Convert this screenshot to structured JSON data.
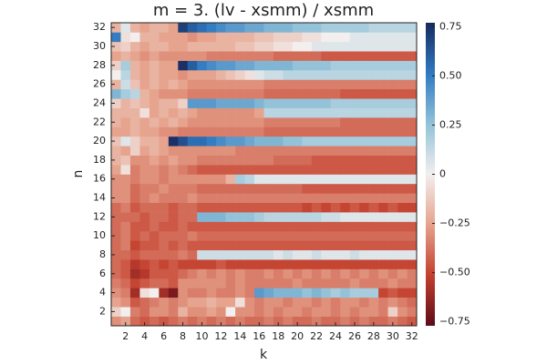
{
  "chart_data": {
    "type": "heatmap",
    "title": "m = 3. (lv - xsmm) / xsmm",
    "x_label": "k",
    "y_label": "n",
    "x": [
      1,
      2,
      3,
      4,
      5,
      6,
      7,
      8,
      9,
      10,
      11,
      12,
      13,
      14,
      15,
      16,
      17,
      18,
      19,
      20,
      21,
      22,
      23,
      24,
      25,
      26,
      27,
      28,
      29,
      30,
      31,
      32
    ],
    "y": [
      1,
      2,
      3,
      4,
      5,
      6,
      7,
      8,
      9,
      10,
      11,
      12,
      13,
      14,
      15,
      16,
      17,
      18,
      19,
      20,
      21,
      22,
      23,
      24,
      25,
      26,
      27,
      28,
      29,
      30,
      31,
      32
    ],
    "xlim": [
      0.5,
      32.5
    ],
    "ylim": [
      0.5,
      32.5
    ],
    "xticks": [
      2,
      4,
      6,
      8,
      10,
      12,
      14,
      16,
      18,
      20,
      22,
      24,
      26,
      28,
      30,
      32
    ],
    "yticks": [
      2,
      4,
      6,
      8,
      10,
      12,
      14,
      16,
      18,
      20,
      22,
      24,
      26,
      28,
      30,
      32
    ],
    "clim": [
      -0.77,
      0.77
    ],
    "colormap": [
      "#5e0b1a",
      "#c3402e",
      "#e6a28c",
      "#f2efee",
      "#91c2d8",
      "#2f79c2",
      "#182a5e"
    ],
    "cticks": [
      {
        "value": -0.75,
        "label": "−0.75"
      },
      {
        "value": -0.5,
        "label": "−0.50"
      },
      {
        "value": -0.25,
        "label": "−0.25"
      },
      0,
      0.25,
      {
        "value": 0.5,
        "label": "0.50"
      },
      0.75
    ],
    "z": [
      [
        -0.3,
        -0.25,
        -0.4,
        -0.45,
        -0.4,
        -0.45,
        -0.4,
        -0.35,
        -0.4,
        -0.35,
        -0.4,
        -0.35,
        -0.4,
        -0.35,
        -0.4,
        -0.4,
        -0.35,
        -0.4,
        -0.35,
        -0.4,
        -0.4,
        -0.35,
        -0.4,
        -0.4,
        -0.35,
        -0.4,
        -0.35,
        -0.4,
        -0.4,
        -0.35,
        -0.4,
        -0.45
      ],
      [
        -0.1,
        0,
        -0.35,
        -0.4,
        -0.3,
        -0.3,
        -0.35,
        -0.2,
        -0.3,
        -0.3,
        -0.25,
        -0.3,
        0,
        -0.3,
        -0.3,
        -0.35,
        -0.3,
        -0.35,
        -0.3,
        -0.3,
        -0.35,
        -0.3,
        -0.3,
        -0.35,
        -0.3,
        -0.35,
        -0.3,
        -0.3,
        -0.35,
        -0.1,
        -0.3,
        -0.35
      ],
      [
        -0.25,
        -0.3,
        -0.45,
        -0.4,
        -0.35,
        -0.3,
        -0.35,
        -0.3,
        -0.25,
        -0.25,
        -0.2,
        -0.25,
        -0.25,
        -0.05,
        -0.3,
        -0.35,
        -0.3,
        -0.3,
        -0.35,
        -0.3,
        -0.3,
        -0.35,
        -0.3,
        -0.35,
        -0.3,
        -0.3,
        -0.35,
        -0.3,
        -0.35,
        -0.3,
        -0.35,
        -0.4
      ],
      [
        -0.3,
        -0.35,
        -0.6,
        -0.05,
        0,
        -0.6,
        -0.7,
        -0.3,
        -0.35,
        -0.35,
        -0.3,
        -0.35,
        -0.35,
        -0.3,
        -0.35,
        0.4,
        0.35,
        0.3,
        0.3,
        0.3,
        0.25,
        0.3,
        0.25,
        0.2,
        0.25,
        0.2,
        0.2,
        0.2,
        -0.5,
        -0.45,
        -0.5,
        -0.5
      ],
      [
        -0.35,
        -0.4,
        -0.5,
        -0.45,
        -0.4,
        -0.4,
        -0.45,
        -0.3,
        -0.3,
        -0.3,
        -0.3,
        -0.3,
        -0.35,
        -0.3,
        -0.35,
        -0.35,
        -0.35,
        -0.35,
        -0.35,
        -0.3,
        -0.35,
        -0.35,
        -0.35,
        -0.35,
        -0.35,
        -0.3,
        -0.35,
        -0.35,
        -0.35,
        -0.3,
        -0.35,
        -0.35
      ],
      [
        -0.4,
        -0.45,
        -0.6,
        -0.55,
        -0.45,
        -0.45,
        -0.45,
        -0.4,
        -0.35,
        -0.3,
        -0.35,
        -0.3,
        -0.35,
        -0.3,
        -0.35,
        -0.35,
        -0.3,
        -0.35,
        -0.3,
        -0.35,
        -0.3,
        -0.35,
        -0.3,
        -0.35,
        -0.3,
        -0.35,
        -0.3,
        -0.35,
        -0.3,
        -0.35,
        -0.3,
        -0.35
      ],
      [
        -0.4,
        -0.45,
        -0.55,
        -0.5,
        -0.45,
        -0.5,
        -0.45,
        -0.5,
        -0.5,
        -0.5,
        -0.5,
        -0.45,
        -0.5,
        -0.5,
        -0.5,
        -0.5,
        -0.5,
        -0.5,
        -0.5,
        -0.5,
        -0.5,
        -0.5,
        -0.5,
        -0.5,
        -0.5,
        -0.5,
        -0.5,
        -0.5,
        -0.5,
        -0.5,
        -0.5,
        -0.5
      ],
      [
        -0.4,
        -0.4,
        -0.45,
        -0.4,
        -0.4,
        -0.4,
        -0.4,
        -0.35,
        -0.4,
        0.1,
        0.1,
        0.1,
        0.1,
        0.1,
        0.1,
        0.1,
        0.1,
        0.05,
        0.1,
        0.05,
        0.05,
        0.1,
        0.05,
        0.05,
        0.05,
        0.1,
        0.05,
        0.05,
        0.05,
        0.05,
        0.05,
        0.05
      ],
      [
        -0.4,
        -0.35,
        -0.5,
        -0.45,
        -0.45,
        -0.4,
        -0.45,
        -0.4,
        -0.45,
        -0.45,
        -0.45,
        -0.45,
        -0.45,
        -0.45,
        -0.45,
        -0.45,
        -0.45,
        -0.45,
        -0.45,
        -0.45,
        -0.45,
        -0.45,
        -0.45,
        -0.45,
        -0.45,
        -0.45,
        -0.45,
        -0.45,
        -0.45,
        -0.45,
        -0.45,
        -0.45
      ],
      [
        -0.4,
        -0.35,
        -0.45,
        -0.4,
        -0.45,
        -0.4,
        -0.4,
        -0.4,
        -0.35,
        -0.4,
        -0.4,
        -0.4,
        -0.4,
        -0.4,
        -0.4,
        -0.4,
        -0.4,
        -0.4,
        -0.4,
        -0.4,
        -0.4,
        -0.4,
        -0.4,
        -0.4,
        -0.4,
        -0.4,
        -0.4,
        -0.4,
        -0.4,
        -0.4,
        -0.4,
        -0.4
      ],
      [
        -0.4,
        -0.35,
        -0.45,
        -0.45,
        -0.4,
        -0.45,
        -0.45,
        -0.4,
        -0.45,
        -0.45,
        -0.45,
        -0.45,
        -0.45,
        -0.45,
        -0.45,
        -0.45,
        -0.45,
        -0.45,
        -0.45,
        -0.45,
        -0.45,
        -0.45,
        -0.45,
        -0.45,
        -0.45,
        -0.45,
        -0.45,
        -0.45,
        -0.45,
        -0.45,
        -0.45,
        -0.45
      ],
      [
        -0.4,
        -0.4,
        -0.4,
        -0.45,
        -0.4,
        -0.4,
        -0.45,
        -0.4,
        -0.4,
        0.3,
        0.3,
        0.3,
        0.25,
        0.25,
        0.25,
        0.2,
        0.15,
        0.15,
        0.15,
        0.15,
        0.15,
        0.15,
        0.1,
        0.1,
        0.05,
        0.05,
        0.05,
        0.05,
        0.05,
        0.05,
        0.05,
        0.05
      ],
      [
        -0.4,
        -0.35,
        -0.45,
        -0.4,
        -0.4,
        -0.4,
        -0.45,
        -0.4,
        -0.4,
        -0.45,
        -0.45,
        -0.45,
        -0.45,
        -0.45,
        -0.45,
        -0.45,
        -0.45,
        -0.45,
        -0.45,
        -0.45,
        -0.5,
        -0.45,
        -0.5,
        -0.45,
        -0.5,
        -0.45,
        -0.5,
        -0.45,
        -0.5,
        -0.45,
        -0.5,
        -0.5
      ],
      [
        -0.3,
        -0.3,
        -0.4,
        -0.35,
        -0.3,
        -0.35,
        -0.35,
        -0.35,
        -0.3,
        -0.35,
        -0.35,
        -0.35,
        -0.35,
        -0.35,
        -0.35,
        -0.35,
        -0.35,
        -0.35,
        -0.35,
        -0.35,
        -0.35,
        -0.35,
        -0.35,
        -0.35,
        -0.35,
        -0.35,
        -0.35,
        -0.35,
        -0.35,
        -0.35,
        -0.35,
        -0.35
      ],
      [
        -0.3,
        -0.3,
        -0.4,
        -0.35,
        -0.35,
        -0.3,
        -0.35,
        -0.35,
        -0.35,
        -0.4,
        -0.4,
        -0.4,
        -0.4,
        -0.4,
        -0.4,
        -0.4,
        -0.4,
        -0.4,
        -0.4,
        -0.4,
        -0.45,
        -0.45,
        -0.45,
        -0.45,
        -0.45,
        -0.45,
        -0.45,
        -0.45,
        -0.45,
        -0.45,
        -0.45,
        -0.45
      ],
      [
        -0.3,
        -0.3,
        -0.35,
        -0.3,
        -0.3,
        -0.35,
        -0.3,
        -0.3,
        -0.3,
        -0.3,
        -0.3,
        -0.3,
        -0.2,
        0.2,
        0.15,
        0.05,
        0.05,
        0.05,
        0.05,
        0.05,
        0.05,
        0.05,
        0.05,
        0.05,
        0.05,
        0.05,
        0.05,
        0.05,
        0.05,
        0.05,
        0.05,
        0.05
      ],
      [
        -0.25,
        -0.05,
        -0.35,
        -0.3,
        -0.3,
        -0.35,
        -0.3,
        -0.35,
        -0.4,
        -0.45,
        -0.45,
        -0.45,
        -0.45,
        -0.45,
        -0.45,
        -0.45,
        -0.45,
        -0.45,
        -0.45,
        -0.45,
        -0.45,
        -0.45,
        -0.45,
        -0.45,
        -0.45,
        -0.45,
        -0.45,
        -0.45,
        -0.45,
        -0.45,
        -0.45,
        -0.45
      ],
      [
        -0.2,
        -0.15,
        -0.3,
        -0.3,
        -0.25,
        -0.3,
        -0.25,
        -0.3,
        -0.3,
        -0.35,
        -0.35,
        -0.35,
        -0.35,
        -0.35,
        -0.35,
        -0.35,
        -0.35,
        -0.4,
        -0.4,
        -0.4,
        -0.4,
        -0.45,
        -0.45,
        -0.45,
        -0.45,
        -0.45,
        -0.45,
        -0.45,
        -0.45,
        -0.45,
        -0.45,
        -0.45
      ],
      [
        -0.2,
        -0.25,
        -0.1,
        -0.25,
        -0.2,
        -0.25,
        -0.3,
        -0.3,
        -0.3,
        -0.3,
        -0.3,
        -0.3,
        -0.3,
        -0.35,
        -0.35,
        -0.35,
        -0.35,
        -0.35,
        -0.35,
        -0.35,
        -0.35,
        -0.35,
        -0.35,
        -0.35,
        -0.35,
        -0.35,
        -0.35,
        -0.35,
        -0.35,
        -0.35,
        -0.35,
        -0.35
      ],
      [
        -0.15,
        0.05,
        -0.1,
        -0.2,
        -0.2,
        -0.25,
        0.75,
        0.65,
        0.55,
        0.55,
        0.5,
        0.45,
        0.4,
        0.4,
        0.35,
        0.3,
        0.3,
        0.3,
        0.25,
        0.25,
        0.2,
        0.2,
        0.2,
        0.2,
        0.2,
        0.2,
        0.2,
        0.2,
        0.2,
        0.2,
        0.2,
        0.2
      ],
      [
        -0.25,
        -0.25,
        -0.2,
        -0.25,
        -0.25,
        -0.3,
        -0.3,
        -0.35,
        -0.35,
        -0.35,
        -0.35,
        -0.35,
        -0.35,
        -0.35,
        -0.35,
        -0.35,
        -0.4,
        -0.4,
        -0.4,
        -0.4,
        -0.4,
        -0.4,
        -0.4,
        -0.4,
        -0.4,
        -0.4,
        -0.4,
        -0.4,
        -0.4,
        -0.4,
        -0.4,
        -0.4
      ],
      [
        -0.2,
        -0.25,
        -0.2,
        -0.25,
        -0.2,
        -0.25,
        -0.2,
        -0.25,
        -0.3,
        -0.3,
        -0.3,
        -0.3,
        -0.3,
        -0.3,
        -0.3,
        -0.3,
        -0.35,
        -0.35,
        -0.35,
        -0.35,
        -0.35,
        -0.35,
        -0.35,
        -0.35,
        -0.4,
        -0.4,
        -0.4,
        -0.4,
        -0.4,
        -0.4,
        -0.4,
        -0.4
      ],
      [
        -0.2,
        -0.2,
        -0.2,
        -0.05,
        -0.25,
        -0.2,
        -0.25,
        -0.2,
        -0.25,
        -0.3,
        -0.3,
        -0.3,
        -0.3,
        -0.3,
        -0.3,
        -0.25,
        0.15,
        0.15,
        0.15,
        0.15,
        0.15,
        0.15,
        0.15,
        0.15,
        0.15,
        0.15,
        0.15,
        0.15,
        0.15,
        0.15,
        0.15,
        0.15
      ],
      [
        -0.1,
        -0.2,
        -0.15,
        -0.2,
        -0.25,
        -0.2,
        -0.2,
        -0.1,
        0.4,
        0.4,
        0.4,
        0.35,
        0.35,
        0.35,
        0.35,
        0.3,
        0.25,
        0.25,
        0.25,
        0.25,
        0.25,
        0.25,
        0.25,
        0.2,
        0.2,
        0.2,
        0.2,
        0.2,
        0.2,
        0.2,
        0.2,
        0.2
      ],
      [
        0.3,
        0.2,
        0.15,
        -0.2,
        -0.25,
        -0.3,
        -0.3,
        -0.3,
        -0.35,
        -0.35,
        -0.35,
        -0.35,
        -0.35,
        -0.35,
        -0.35,
        -0.35,
        -0.4,
        -0.4,
        -0.4,
        -0.4,
        -0.4,
        -0.4,
        -0.4,
        -0.4,
        -0.45,
        -0.45,
        -0.45,
        -0.45,
        -0.45,
        -0.45,
        -0.45,
        -0.45
      ],
      [
        -0.2,
        0.1,
        -0.15,
        -0.25,
        -0.2,
        -0.25,
        -0.2,
        -0.25,
        -0.3,
        -0.3,
        -0.3,
        -0.3,
        -0.3,
        -0.3,
        -0.3,
        -0.3,
        -0.35,
        -0.35,
        -0.35,
        -0.35,
        -0.35,
        -0.35,
        -0.35,
        -0.35,
        -0.35,
        -0.35,
        -0.35,
        -0.35,
        -0.35,
        -0.35,
        -0.35,
        -0.35
      ],
      [
        0,
        0.15,
        -0.2,
        -0.25,
        -0.2,
        -0.25,
        -0.25,
        -0.3,
        -0.25,
        -0.25,
        -0.25,
        -0.2,
        -0.15,
        -0.1,
        -0.05,
        0.05,
        0.1,
        0.1,
        0.15,
        0.15,
        0.15,
        0.15,
        0.15,
        0.15,
        0.15,
        0.15,
        0.15,
        0.15,
        0.15,
        0.15,
        0.15,
        0.15
      ],
      [
        -0.1,
        0.2,
        -0.2,
        -0.25,
        -0.2,
        -0.25,
        -0.25,
        0.75,
        0.6,
        0.5,
        0.45,
        0.4,
        0.4,
        0.35,
        0.35,
        0.3,
        0.3,
        0.3,
        0.3,
        0.25,
        0.25,
        0.25,
        0.25,
        0.2,
        0.2,
        0.2,
        0.2,
        0.2,
        0.2,
        0.2,
        0.2,
        0.2
      ],
      [
        -0.25,
        -0.2,
        -0.25,
        -0.3,
        -0.25,
        -0.3,
        -0.3,
        -0.3,
        -0.3,
        -0.3,
        -0.35,
        -0.35,
        -0.35,
        -0.35,
        -0.35,
        -0.35,
        -0.35,
        -0.4,
        -0.4,
        -0.4,
        -0.4,
        -0.4,
        -0.45,
        -0.45,
        -0.45,
        -0.45,
        -0.45,
        -0.45,
        -0.45,
        -0.45,
        -0.45,
        -0.45
      ],
      [
        -0.15,
        -0.1,
        -0.2,
        -0.25,
        -0.2,
        -0.2,
        -0.25,
        -0.25,
        -0.2,
        -0.2,
        -0.2,
        -0.2,
        -0.2,
        -0.15,
        -0.15,
        -0.1,
        -0.1,
        -0.05,
        -0.05,
        0,
        0,
        0.05,
        0.05,
        0.05,
        0.05,
        0.05,
        0.05,
        0.05,
        0.05,
        0.05,
        0.05,
        0.05
      ],
      [
        0.5,
        -0.05,
        0,
        -0.2,
        -0.2,
        -0.25,
        -0.25,
        -0.25,
        -0.3,
        -0.25,
        -0.25,
        -0.2,
        -0.2,
        -0.2,
        -0.2,
        -0.15,
        -0.15,
        -0.1,
        -0.1,
        -0.1,
        -0.05,
        -0.05,
        0,
        0,
        0,
        0.05,
        0.05,
        0.05,
        0.05,
        0.05,
        0.05,
        0.05
      ],
      [
        -0.2,
        0.05,
        -0.2,
        -0.25,
        -0.2,
        -0.2,
        -0.25,
        0.7,
        0.6,
        0.55,
        0.5,
        0.45,
        0.4,
        0.4,
        0.35,
        0.35,
        0.3,
        0.3,
        0.3,
        0.25,
        0.25,
        0.25,
        0.2,
        0.2,
        0.2,
        0.2,
        0.2,
        0.15,
        0.15,
        0.15,
        0.15,
        0.15
      ]
    ]
  }
}
